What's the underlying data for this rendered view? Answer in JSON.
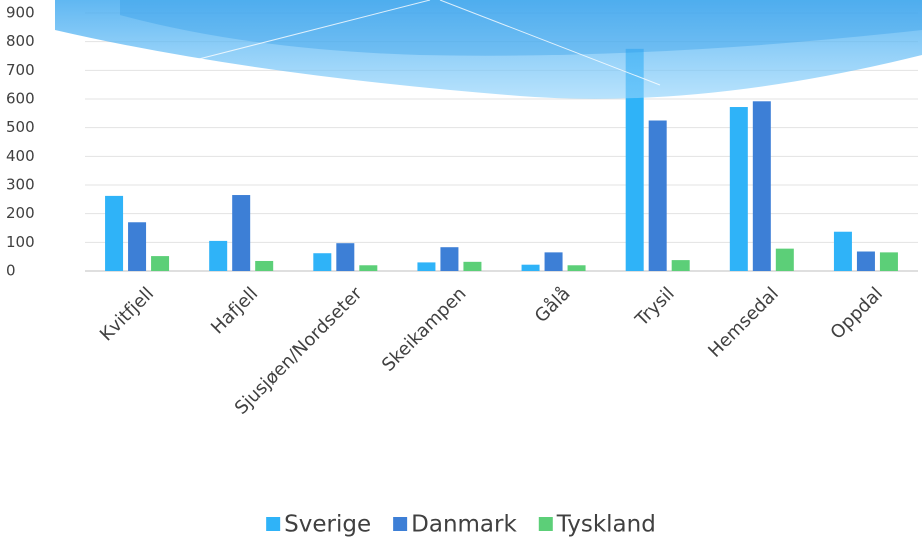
{
  "chart_data": {
    "type": "bar",
    "categories": [
      "Kvitfjell",
      "Hafjell",
      "Sjusjøen/Nordseter",
      "Skeikampen",
      "Gålå",
      "Trysil",
      "Hemsedal",
      "Oppdal"
    ],
    "series": [
      {
        "name": "Sverige",
        "color": "#2fb3f8",
        "values": [
          262,
          105,
          62,
          30,
          22,
          775,
          572,
          137
        ]
      },
      {
        "name": "Danmark",
        "color": "#3d7fd6",
        "values": [
          170,
          265,
          97,
          83,
          65,
          525,
          592,
          68
        ]
      },
      {
        "name": "Tyskland",
        "color": "#5ccf78",
        "values": [
          52,
          35,
          20,
          32,
          20,
          38,
          78,
          65
        ]
      }
    ],
    "ylim": [
      0,
      900
    ],
    "yticks": [
      0,
      100,
      200,
      300,
      400,
      500,
      600,
      700,
      800,
      900
    ],
    "grid": true,
    "legend": "bottom"
  }
}
